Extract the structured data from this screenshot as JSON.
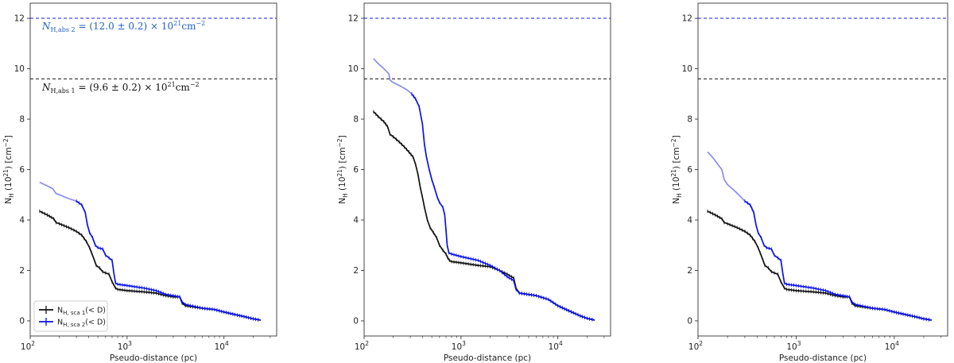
{
  "colors": {
    "black_curve": "#111111",
    "blue_curve": "#0a12e6",
    "light_blue_curve": "#8a8cf0",
    "blue_line": "#1a1ae0",
    "blue_annotation": "#2060c0",
    "frame": "#333333"
  },
  "shared": {
    "xlabel": "Pseudo-distance (pc)",
    "ylabel_main": "N",
    "ylabel_sub": "H",
    "ylabel_rest": " (10",
    "ylabel_exp": "21",
    "ylabel_unit": ") [cm",
    "ylabel_unit_exp": "−2",
    "ylabel_close": "]",
    "xticks": [
      {
        "base": "10",
        "exp": "2",
        "value": 100
      },
      {
        "base": "10",
        "exp": "3",
        "value": 1000
      },
      {
        "base": "10",
        "exp": "4",
        "value": 10000
      }
    ],
    "yticks": [
      "0",
      "2",
      "4",
      "6",
      "8",
      "10",
      "12"
    ],
    "annotations": {
      "abs2": "N_H,abs 2 = (12.0 ± 0.2) × 10^21 cm^−2",
      "abs1": "N_H,abs 1 = (9.6 ± 0.2) × 10^21 cm^−2"
    },
    "legend": [
      "N_H, sca 1 (< D)",
      "N_H, sca 2 (< D)"
    ]
  },
  "chart_data": [
    {
      "type": "line",
      "xscale": "log",
      "xlim": [
        100,
        35000
      ],
      "ylim": [
        -0.6,
        12.6
      ],
      "xlabel": "Pseudo-distance (pc)",
      "ylabel": "N_H (10^21) [cm^-2]",
      "hlines": [
        {
          "name": "N_H,abs 2",
          "y": 12.0,
          "style": "dashed",
          "color": "blue"
        },
        {
          "name": "N_H,abs 1",
          "y": 9.6,
          "style": "dashed",
          "color": "black"
        }
      ],
      "legend_position": "lower-left",
      "series": [
        {
          "name": "N_H, sca 1 (< D)",
          "x": [
            125,
            150,
            175,
            185,
            200,
            250,
            300,
            340,
            380,
            410,
            430,
            460,
            480,
            520,
            560,
            600,
            650,
            700,
            760,
            800,
            1000,
            1500,
            2000,
            2500,
            3000,
            3500,
            3700,
            4000,
            6000,
            8000,
            10000,
            13000,
            17000,
            20000,
            24000
          ],
          "values": [
            4.35,
            4.2,
            4.05,
            3.9,
            3.85,
            3.7,
            3.55,
            3.4,
            3.15,
            2.9,
            2.7,
            2.4,
            2.2,
            2.1,
            1.95,
            1.9,
            1.85,
            1.55,
            1.3,
            1.25,
            1.2,
            1.15,
            1.1,
            1.0,
            0.95,
            0.95,
            0.7,
            0.6,
            0.5,
            0.45,
            0.35,
            0.25,
            0.15,
            0.08,
            0.03
          ]
        },
        {
          "name": "N_H, sca 2 (< D), faded",
          "x": [
            125,
            150,
            170,
            185,
            200,
            250,
            300
          ],
          "values": [
            5.5,
            5.35,
            5.25,
            5.05,
            5.0,
            4.85,
            4.75
          ]
        },
        {
          "name": "N_H, sca 2 (< D)",
          "x": [
            300,
            340,
            370,
            390,
            410,
            440,
            470,
            500,
            560,
            600,
            650,
            700,
            730,
            760,
            800,
            1000,
            1500,
            2000,
            2500,
            3000,
            3500,
            3700,
            4000,
            6000,
            8000,
            10000,
            13000,
            17000,
            20000,
            24000
          ],
          "values": [
            4.75,
            4.6,
            4.3,
            3.8,
            3.5,
            3.3,
            3.0,
            2.9,
            2.85,
            2.6,
            2.5,
            2.4,
            1.9,
            1.5,
            1.45,
            1.4,
            1.3,
            1.2,
            1.05,
            1.0,
            0.95,
            0.75,
            0.65,
            0.5,
            0.45,
            0.35,
            0.25,
            0.15,
            0.08,
            0.03
          ]
        }
      ]
    },
    {
      "type": "line",
      "xscale": "log",
      "xlim": [
        100,
        35000
      ],
      "ylim": [
        -0.6,
        12.6
      ],
      "xlabel": "Pseudo-distance (pc)",
      "ylabel": "N_H (10^21) [cm^-2]",
      "hlines": [
        {
          "name": "N_H,abs 2",
          "y": 12.0,
          "style": "dashed",
          "color": "blue"
        },
        {
          "name": "N_H,abs 1",
          "y": 9.6,
          "style": "dashed",
          "color": "black"
        }
      ],
      "series": [
        {
          "name": "N_H, sca 1 (< D)",
          "x": [
            125,
            140,
            160,
            175,
            185,
            200,
            230,
            260,
            290,
            320,
            340,
            360,
            380,
            400,
            420,
            450,
            480,
            520,
            560,
            600,
            650,
            700,
            730,
            760,
            800,
            1000,
            1500,
            2000,
            2500,
            3000,
            3500,
            3700,
            4000,
            6000,
            8000,
            10000,
            13000,
            17000,
            20000,
            24000
          ],
          "values": [
            8.3,
            8.1,
            7.9,
            7.7,
            7.4,
            7.3,
            7.1,
            6.9,
            6.7,
            6.5,
            6.2,
            5.8,
            5.3,
            4.9,
            4.5,
            4.0,
            3.7,
            3.5,
            3.3,
            3.0,
            2.8,
            2.65,
            2.5,
            2.4,
            2.35,
            2.3,
            2.2,
            2.15,
            2.0,
            1.85,
            1.7,
            1.3,
            1.1,
            1.0,
            0.85,
            0.6,
            0.4,
            0.2,
            0.1,
            0.03
          ]
        },
        {
          "name": "N_H, sca 2 (< D), faded",
          "x": [
            125,
            140,
            160,
            175,
            180,
            185,
            200,
            240,
            280,
            310
          ],
          "values": [
            10.4,
            10.2,
            10.0,
            9.85,
            9.8,
            9.55,
            9.45,
            9.3,
            9.15,
            9.0
          ]
        },
        {
          "name": "N_H, sca 2 (< D)",
          "x": [
            310,
            340,
            370,
            400,
            420,
            440,
            470,
            500,
            530,
            570,
            600,
            650,
            680,
            700,
            720,
            750,
            800,
            1000,
            1500,
            2000,
            2500,
            3000,
            3500,
            3700,
            4000,
            6000,
            8000,
            10000,
            13000,
            17000,
            20000,
            24000
          ],
          "values": [
            9.0,
            8.8,
            8.5,
            7.8,
            7.0,
            6.5,
            6.0,
            5.6,
            5.3,
            4.9,
            4.7,
            4.5,
            4.2,
            3.6,
            3.0,
            2.7,
            2.65,
            2.55,
            2.4,
            2.2,
            2.0,
            1.75,
            1.6,
            1.25,
            1.1,
            1.0,
            0.85,
            0.6,
            0.4,
            0.2,
            0.1,
            0.03
          ]
        }
      ]
    },
    {
      "type": "line",
      "xscale": "log",
      "xlim": [
        100,
        35000
      ],
      "ylim": [
        -0.6,
        12.6
      ],
      "xlabel": "Pseudo-distance (pc)",
      "ylabel": "N_H (10^21) [cm^-2]",
      "hlines": [
        {
          "name": "N_H,abs 2",
          "y": 12.0,
          "style": "dashed",
          "color": "blue"
        },
        {
          "name": "N_H,abs 1",
          "y": 9.6,
          "style": "dashed",
          "color": "black"
        }
      ],
      "series": [
        {
          "name": "N_H, sca 1 (< D)",
          "x": [
            125,
            150,
            175,
            185,
            200,
            250,
            300,
            340,
            380,
            410,
            430,
            460,
            480,
            520,
            560,
            600,
            650,
            700,
            760,
            800,
            1000,
            1500,
            2000,
            2500,
            3000,
            3500,
            3700,
            4000,
            6000,
            8000,
            10000,
            13000,
            17000,
            20000,
            24000
          ],
          "values": [
            4.35,
            4.2,
            4.05,
            3.9,
            3.85,
            3.7,
            3.55,
            3.4,
            3.15,
            2.9,
            2.7,
            2.4,
            2.2,
            2.1,
            1.95,
            1.9,
            1.85,
            1.55,
            1.3,
            1.25,
            1.2,
            1.15,
            1.1,
            1.0,
            0.95,
            0.95,
            0.7,
            0.6,
            0.5,
            0.45,
            0.35,
            0.25,
            0.15,
            0.08,
            0.03
          ]
        },
        {
          "name": "N_H, sca 2 (< D), faded",
          "x": [
            125,
            140,
            160,
            175,
            185,
            200,
            230,
            260,
            300
          ],
          "values": [
            6.7,
            6.5,
            6.2,
            6.0,
            5.6,
            5.4,
            5.2,
            5.0,
            4.75
          ]
        },
        {
          "name": "N_H, sca 2 (< D)",
          "x": [
            300,
            340,
            370,
            390,
            410,
            440,
            470,
            500,
            560,
            600,
            650,
            700,
            730,
            760,
            800,
            1000,
            1500,
            2000,
            2500,
            3000,
            3500,
            3700,
            4000,
            6000,
            8000,
            10000,
            13000,
            17000,
            20000,
            24000
          ],
          "values": [
            4.75,
            4.6,
            4.3,
            3.8,
            3.5,
            3.3,
            3.0,
            2.9,
            2.85,
            2.6,
            2.5,
            2.4,
            1.9,
            1.5,
            1.45,
            1.4,
            1.3,
            1.2,
            1.05,
            1.0,
            0.95,
            0.75,
            0.65,
            0.5,
            0.45,
            0.35,
            0.25,
            0.15,
            0.08,
            0.03
          ]
        }
      ]
    }
  ]
}
